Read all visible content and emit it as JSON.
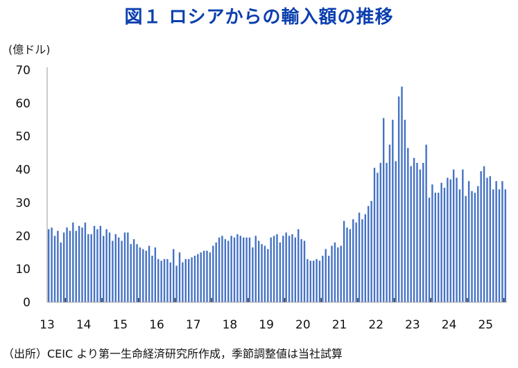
{
  "title": "図１ ロシアからの輸入額の推移",
  "unit_label": "(億ドル)",
  "source_note": "（出所）CEIC より第一生命経済研究所作成，季節調整値は当社試算",
  "colors": {
    "bar": "#4472c4",
    "title": "#0b3fae",
    "axis": "#999999"
  },
  "chart_data": {
    "type": "bar",
    "title": "図１ ロシアからの輸入額の推移",
    "ylabel": "(億ドル)",
    "xlabel": "",
    "ylim": [
      0,
      70
    ],
    "yticks": [
      0,
      10,
      20,
      30,
      40,
      50,
      60,
      70
    ],
    "grid": false,
    "legend": "none",
    "frequency": "monthly",
    "start": "2013-01",
    "end": "2025-07",
    "year_labels": [
      "13",
      "14",
      "15",
      "16",
      "17",
      "18",
      "19",
      "20",
      "21",
      "22",
      "23",
      "24",
      "25"
    ],
    "series": [
      {
        "values": [
          22,
          22.5,
          20,
          21.5,
          18,
          21,
          22.5,
          21.5,
          24,
          21.5,
          23,
          22.5,
          24,
          20.5,
          20.5,
          23,
          22,
          23,
          20,
          22,
          21,
          18.5,
          20.5,
          19.5,
          18.5,
          21,
          21,
          17.5,
          19,
          17.5,
          16.5,
          16,
          15.5,
          17,
          14,
          16.5,
          13,
          12.5,
          13,
          13,
          12,
          16,
          11,
          15,
          12,
          13,
          13,
          13.5,
          14,
          14.5,
          15,
          15.5,
          15.5,
          15,
          17,
          18,
          19.5,
          20,
          19,
          18.5,
          20,
          19.5,
          20.5,
          20,
          19.5,
          19.5,
          19.5,
          16.5,
          20,
          18.5,
          17.5,
          17,
          16,
          19.5,
          20,
          20.5,
          18,
          20,
          21,
          20,
          20.5,
          19.5,
          22,
          19,
          18.5,
          13,
          12.5,
          12.5,
          13,
          12.5,
          14,
          16,
          14,
          17,
          18,
          16.5,
          17,
          24.5,
          22.5,
          22,
          25,
          24,
          27,
          25,
          26.5,
          29,
          30.5,
          40.5,
          39,
          42,
          55.5,
          42,
          47.5,
          55,
          42.5,
          62,
          65,
          55,
          46.5,
          41,
          43.5,
          42,
          40,
          42,
          47.5,
          31.5,
          35.5,
          33,
          33,
          36,
          34.5,
          37.5,
          37,
          40,
          37.5,
          34,
          40,
          32,
          36.5,
          33.5,
          33,
          35,
          39.5,
          41,
          37.5,
          38,
          34,
          36.5,
          34,
          36.5,
          34
        ]
      }
    ]
  }
}
